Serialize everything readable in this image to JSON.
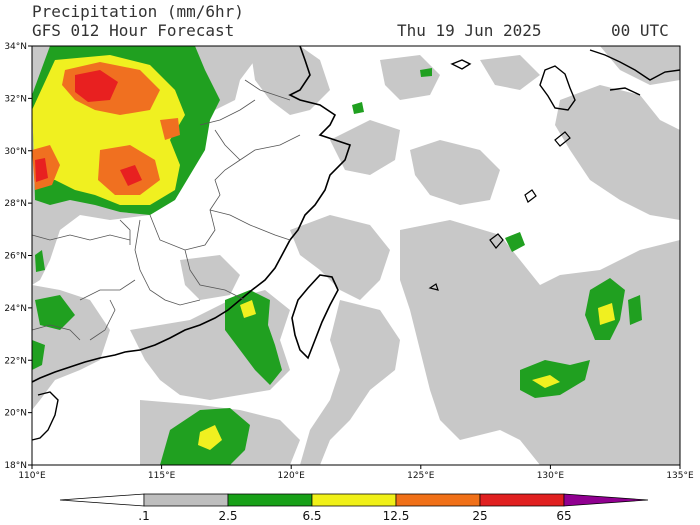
{
  "header": {
    "title": "Precipitation (mm/6hr)",
    "subtitle": "GFS 012 Hour Forecast",
    "date": "Thu 19 Jun 2025",
    "time": "00 UTC"
  },
  "map": {
    "lon_range": [
      110,
      135
    ],
    "lat_range": [
      18,
      34
    ],
    "lon_ticks": [
      "110°E",
      "115°E",
      "120°E",
      "125°E",
      "130°E",
      "135°E"
    ],
    "lat_ticks": [
      "18°N",
      "20°N",
      "22°N",
      "24°N",
      "26°N",
      "28°N",
      "30°N",
      "32°N",
      "34°N"
    ]
  },
  "colorbar": {
    "labels": [
      ".1",
      "2.5",
      "6.5",
      "12.5",
      "25",
      "65"
    ],
    "colors": [
      "#ffffff",
      "#bebebe",
      "#18a018",
      "#f0f018",
      "#f07018",
      "#e02020",
      "#900090"
    ]
  },
  "colors": {
    "light": "#c8c8c8",
    "green": "#20a020",
    "yellow": "#f0f020",
    "orange": "#f07020",
    "red": "#e82020",
    "coast": "#000000"
  }
}
